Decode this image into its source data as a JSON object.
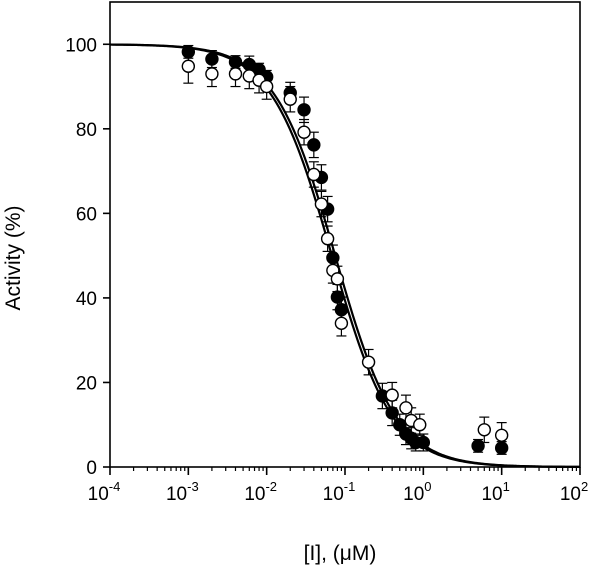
{
  "chart_data": {
    "type": "scatter",
    "title": "",
    "xlabel": "[I], (μM)",
    "ylabel": "Activity (%)",
    "xscale": "log",
    "xlim": [
      0.0001,
      100
    ],
    "ylim": [
      0,
      110
    ],
    "grid": false,
    "x_ticks": [
      {
        "base": "10",
        "exp": "-4",
        "value": 0.0001
      },
      {
        "base": "10",
        "exp": "-3",
        "value": 0.001
      },
      {
        "base": "10",
        "exp": "-2",
        "value": 0.01
      },
      {
        "base": "10",
        "exp": "-1",
        "value": 0.1
      },
      {
        "base": "10",
        "exp": "0",
        "value": 1
      },
      {
        "base": "10",
        "exp": "1",
        "value": 10
      },
      {
        "base": "10",
        "exp": "2",
        "value": 100
      }
    ],
    "y_ticks": [
      {
        "label": "0",
        "value": 0
      },
      {
        "label": "20",
        "value": 20
      },
      {
        "label": "40",
        "value": 40
      },
      {
        "label": "60",
        "value": 60
      },
      {
        "label": "80",
        "value": 80
      },
      {
        "label": "100",
        "value": 100
      }
    ],
    "series": [
      {
        "marker": "filled-circle",
        "color": "#000000",
        "points": [
          {
            "x": 0.001,
            "y": 98.2,
            "err": 1.5
          },
          {
            "x": 0.002,
            "y": 96.5,
            "err": 2.0
          },
          {
            "x": 0.004,
            "y": 95.8,
            "err": 1.5
          },
          {
            "x": 0.006,
            "y": 95.2,
            "err": 2.0
          },
          {
            "x": 0.008,
            "y": 94.0,
            "err": 1.5
          },
          {
            "x": 0.01,
            "y": 92.3,
            "err": 1.5
          },
          {
            "x": 0.02,
            "y": 88.5,
            "err": 2.5
          },
          {
            "x": 0.03,
            "y": 84.5,
            "err": 3.0
          },
          {
            "x": 0.04,
            "y": 76.2,
            "err": 3.0
          },
          {
            "x": 0.05,
            "y": 68.5,
            "err": 3.0
          },
          {
            "x": 0.06,
            "y": 61.0,
            "err": 3.0
          },
          {
            "x": 0.07,
            "y": 49.5,
            "err": 3.0
          },
          {
            "x": 0.08,
            "y": 40.2,
            "err": 3.0
          },
          {
            "x": 0.09,
            "y": 37.2,
            "err": 3.0
          },
          {
            "x": 0.3,
            "y": 16.8,
            "err": 3.0
          },
          {
            "x": 0.4,
            "y": 12.8,
            "err": 3.0
          },
          {
            "x": 0.5,
            "y": 10.0,
            "err": 2.5
          },
          {
            "x": 0.6,
            "y": 7.8,
            "err": 2.5
          },
          {
            "x": 0.7,
            "y": 6.8,
            "err": 2.5
          },
          {
            "x": 0.8,
            "y": 5.8,
            "err": 2.0
          },
          {
            "x": 1.0,
            "y": 5.8,
            "err": 2.0
          },
          {
            "x": 5.0,
            "y": 5.0,
            "err": 1.5
          },
          {
            "x": 10.0,
            "y": 4.5,
            "err": 1.5
          }
        ]
      },
      {
        "marker": "open-circle",
        "color": "#000000",
        "points": [
          {
            "x": 0.001,
            "y": 94.8,
            "err": 4.0
          },
          {
            "x": 0.002,
            "y": 93.0,
            "err": 3.0
          },
          {
            "x": 0.004,
            "y": 93.0,
            "err": 3.0
          },
          {
            "x": 0.006,
            "y": 92.5,
            "err": 3.0
          },
          {
            "x": 0.008,
            "y": 91.5,
            "err": 3.0
          },
          {
            "x": 0.01,
            "y": 90.0,
            "err": 3.0
          },
          {
            "x": 0.02,
            "y": 87.0,
            "err": 3.0
          },
          {
            "x": 0.03,
            "y": 79.2,
            "err": 3.0
          },
          {
            "x": 0.04,
            "y": 69.2,
            "err": 3.0
          },
          {
            "x": 0.05,
            "y": 62.2,
            "err": 3.0
          },
          {
            "x": 0.06,
            "y": 54.0,
            "err": 3.0
          },
          {
            "x": 0.07,
            "y": 46.5,
            "err": 3.0
          },
          {
            "x": 0.08,
            "y": 44.5,
            "err": 3.0
          },
          {
            "x": 0.09,
            "y": 34.0,
            "err": 3.0
          },
          {
            "x": 0.2,
            "y": 24.8,
            "err": 3.0
          },
          {
            "x": 0.4,
            "y": 17.0,
            "err": 3.0
          },
          {
            "x": 0.6,
            "y": 14.0,
            "err": 3.0
          },
          {
            "x": 0.7,
            "y": 11.0,
            "err": 3.0
          },
          {
            "x": 0.9,
            "y": 10.0,
            "err": 2.5
          },
          {
            "x": 6.0,
            "y": 8.8,
            "err": 3.0
          },
          {
            "x": 10.0,
            "y": 7.5,
            "err": 3.0
          }
        ]
      }
    ],
    "curves": [
      {
        "type": "hill",
        "ic50": 0.075,
        "hill": 1.12,
        "top": 100,
        "bottom": 0
      },
      {
        "type": "hill",
        "ic50": 0.068,
        "hill": 1.12,
        "top": 100,
        "bottom": 0
      }
    ]
  }
}
